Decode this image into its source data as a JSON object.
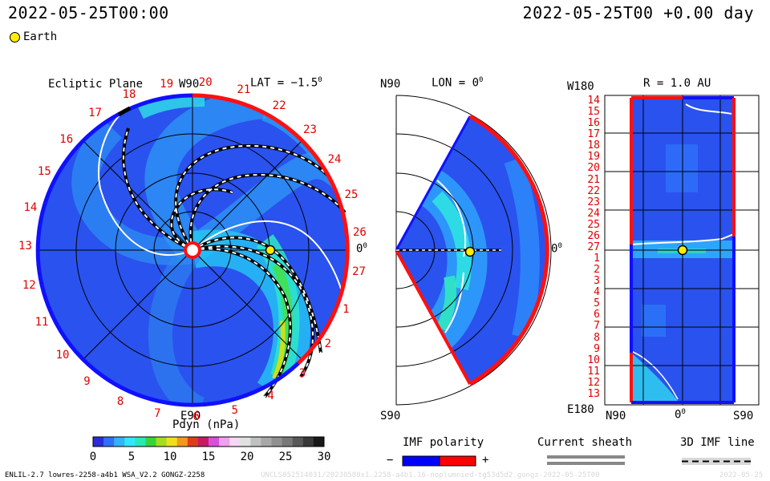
{
  "header": {
    "left_time": "2022-05-25T00:00",
    "right_time": "2022-05-25T00 +0.00 day",
    "legend_earth": "Earth"
  },
  "ecliptic": {
    "title": "Ecliptic Plane",
    "top_label": "W90",
    "bottom_label": "E90",
    "right_label": "0",
    "lat_label": "LAT = −1.5",
    "degree_mark": "0",
    "carrington_numbers": [
      "19",
      "20",
      "21",
      "22",
      "23",
      "24",
      "25",
      "26",
      "27",
      "1",
      "2",
      "3",
      "4",
      "5",
      "6",
      "7",
      "8",
      "9",
      "10",
      "11",
      "12",
      "13",
      "14",
      "15",
      "16",
      "17",
      "18"
    ]
  },
  "meridional": {
    "top_left": "N90",
    "title": "LON = 0",
    "degree_mark": "0",
    "right_label": "0",
    "bottom_left": "S90"
  },
  "radial": {
    "title": "R = 1.0 AU",
    "top_left": "W180",
    "bottom_left": "E180",
    "x_labels": [
      "N90",
      "0",
      "S90"
    ],
    "degree_mark": "0",
    "rows": [
      "14",
      "15",
      "16",
      "17",
      "18",
      "19",
      "20",
      "21",
      "22",
      "23",
      "24",
      "25",
      "26",
      "27",
      "1",
      "2",
      "3",
      "4",
      "5",
      "6",
      "7",
      "8",
      "9",
      "10",
      "11",
      "12",
      "13"
    ]
  },
  "colorbar": {
    "title": "Pdyn (nPa)",
    "ticks": [
      "0",
      "5",
      "10",
      "15",
      "20",
      "25",
      "30"
    ],
    "colors": [
      "#2b2bdd",
      "#2f6fff",
      "#2fb4ff",
      "#2fe8ff",
      "#28e8b4",
      "#3ad23a",
      "#a4dc1e",
      "#f0e01a",
      "#f09a1a",
      "#e03c1a",
      "#c81a64",
      "#d850d8",
      "#f0a0f0",
      "#f4d8f4",
      "#e0e0e0",
      "#c0c0c0",
      "#a8a8a8",
      "#909090",
      "#787878",
      "#585858",
      "#383838",
      "#181818"
    ]
  },
  "imf": {
    "title": "IMF polarity",
    "minus": "−",
    "plus": "+",
    "neg_color": "#0000ff",
    "pos_color": "#ff0000"
  },
  "sheath": {
    "title": "Current sheath"
  },
  "imf3d": {
    "title": "3D IMF line"
  },
  "footer": {
    "model": "ENLIL-2.7 lowres-2258-a4b1 WSA_V2.2 GONGZ-2258",
    "run": "UNCLS052514031/20230580x1.2258-a4b1.16-noplumnied-tg53d5d2.gongz-2022-05-25T00",
    "date": "2022-05-25"
  },
  "colors": {
    "sector_negative": "#1010ff",
    "sector_positive": "#ff1010",
    "earth": "#ffee00",
    "axis_text_red": "#e00000"
  }
}
